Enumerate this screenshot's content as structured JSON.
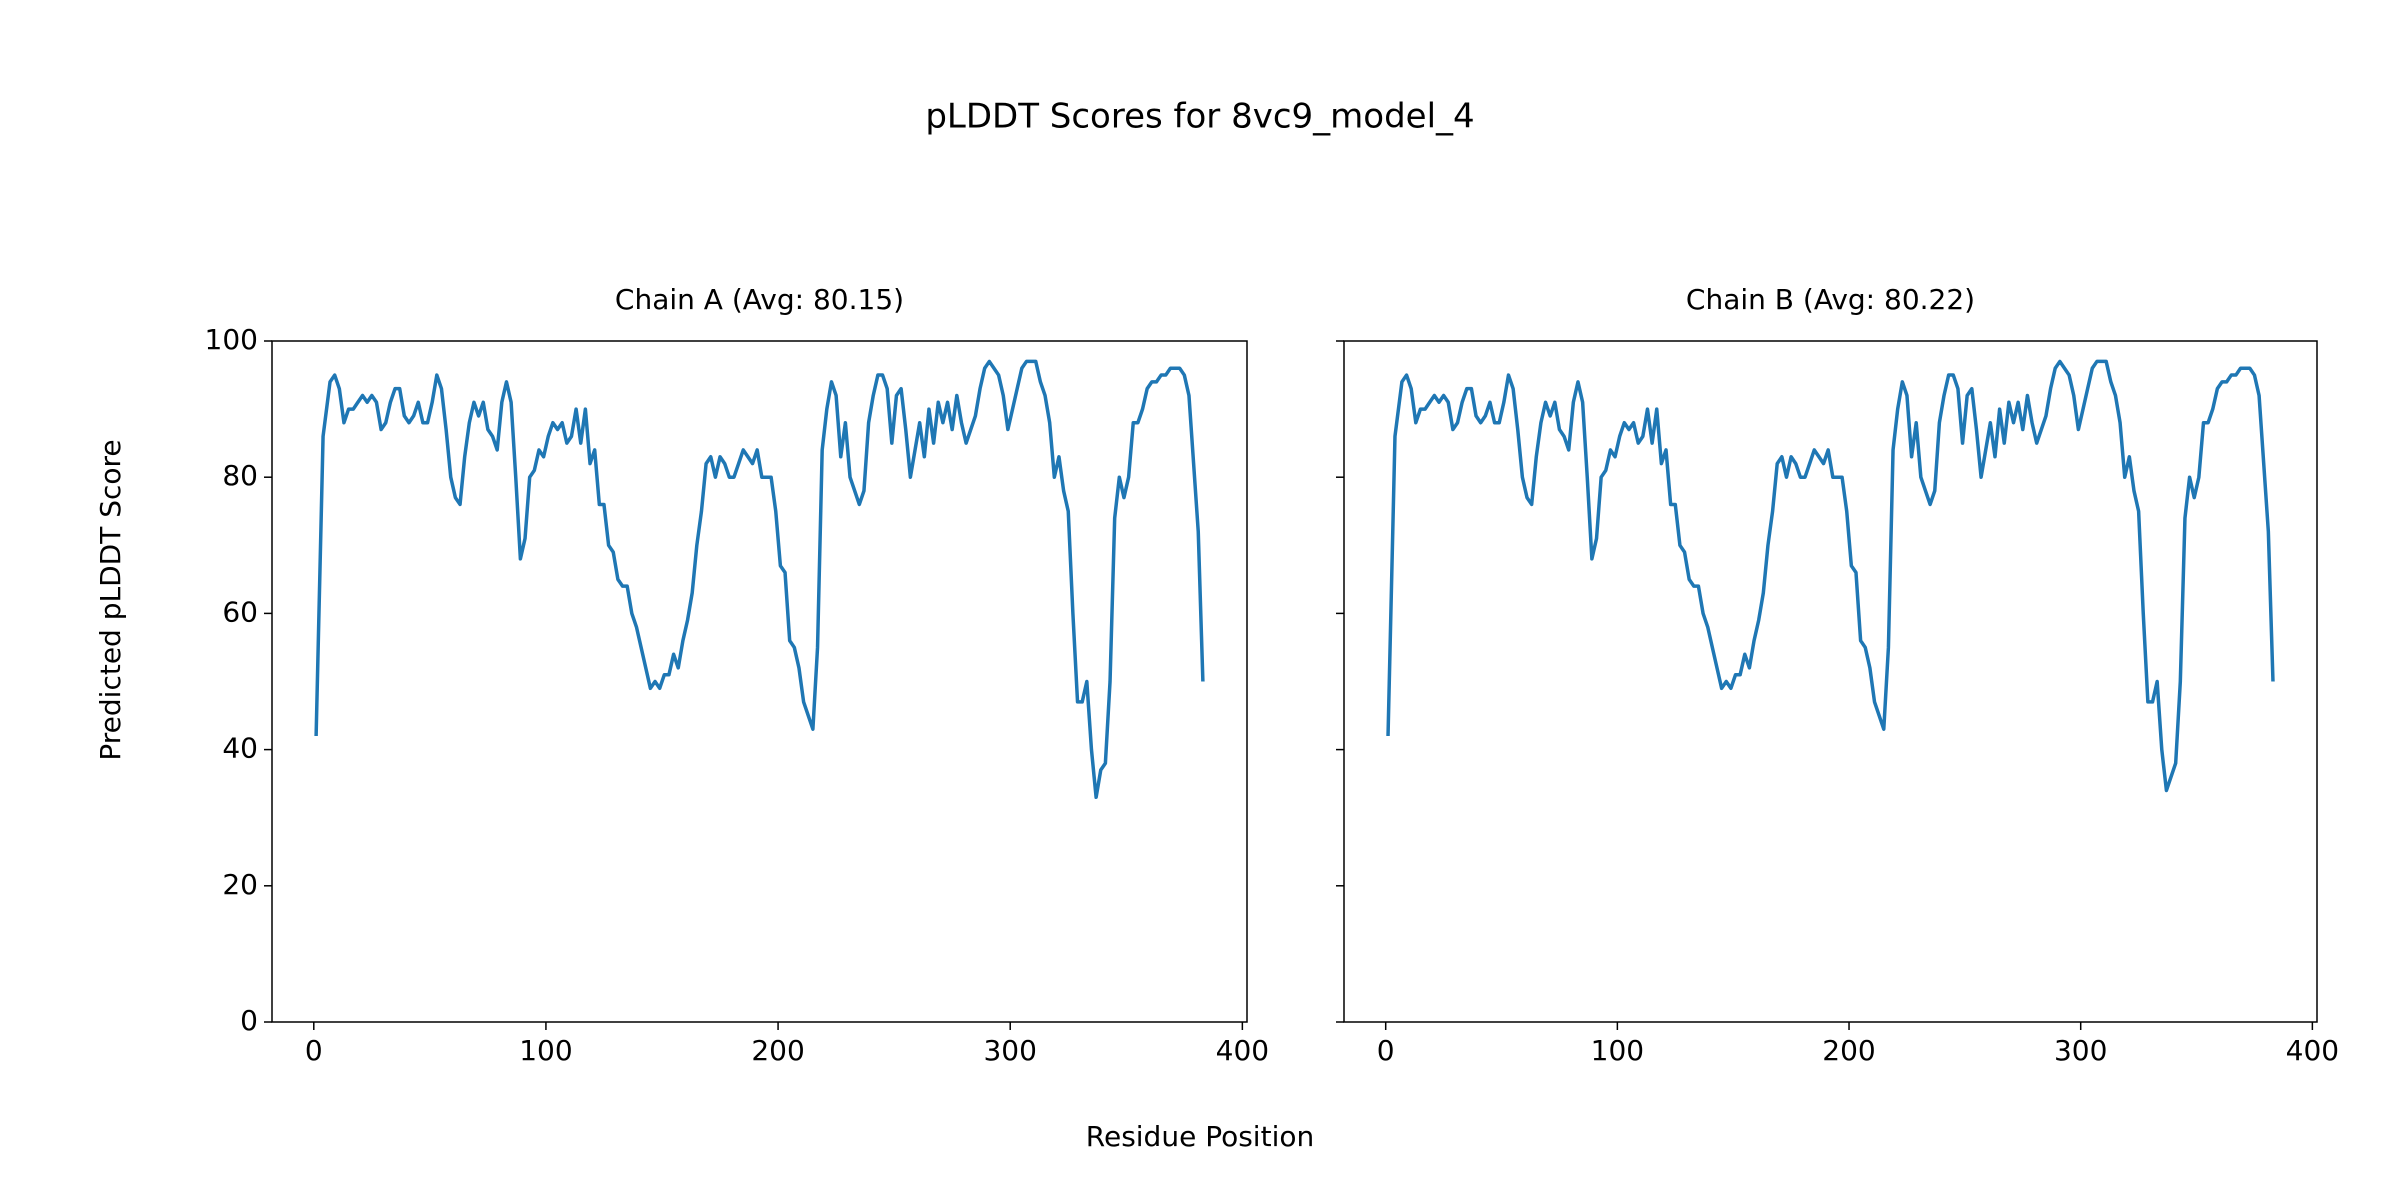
{
  "title": "pLDDT Scores for 8vc9_model_4",
  "x_label": "Residue Position",
  "y_label": "Predicted pLDDT Score",
  "chart_data": [
    {
      "type": "line",
      "title": "Chain A (Avg: 80.15)",
      "color": "#1f77b4",
      "x": [
        1,
        4,
        7,
        9,
        11,
        13,
        15,
        17,
        19,
        21,
        23,
        25,
        27,
        29,
        31,
        33,
        35,
        37,
        39,
        41,
        43,
        45,
        47,
        49,
        51,
        53,
        55,
        57,
        59,
        61,
        63,
        65,
        67,
        69,
        71,
        73,
        75,
        77,
        79,
        81,
        83,
        85,
        87,
        89,
        91,
        93,
        95,
        97,
        99,
        101,
        103,
        105,
        107,
        109,
        111,
        113,
        115,
        117,
        119,
        121,
        123,
        125,
        127,
        129,
        131,
        133,
        135,
        137,
        139,
        141,
        143,
        145,
        147,
        149,
        151,
        153,
        155,
        157,
        159,
        161,
        163,
        165,
        167,
        169,
        171,
        173,
        175,
        177,
        179,
        181,
        183,
        185,
        187,
        189,
        191,
        193,
        195,
        197,
        199,
        201,
        203,
        205,
        207,
        209,
        211,
        213,
        215,
        217,
        219,
        221,
        223,
        225,
        227,
        229,
        231,
        233,
        235,
        237,
        239,
        241,
        243,
        245,
        247,
        249,
        251,
        253,
        255,
        257,
        259,
        261,
        263,
        265,
        267,
        269,
        271,
        273,
        275,
        277,
        279,
        281,
        283,
        285,
        287,
        289,
        291,
        293,
        295,
        297,
        299,
        301,
        303,
        305,
        307,
        309,
        311,
        313,
        315,
        317,
        319,
        321,
        323,
        325,
        327,
        329,
        331,
        333,
        335,
        337,
        339,
        341,
        343,
        345,
        347,
        349,
        351,
        353,
        355,
        357,
        359,
        361,
        363,
        365,
        367,
        369,
        371,
        373,
        375,
        377,
        379,
        381,
        383
      ],
      "values": [
        42,
        86,
        94,
        95,
        93,
        88,
        90,
        90,
        91,
        92,
        91,
        92,
        91,
        87,
        88,
        91,
        93,
        93,
        89,
        88,
        89,
        91,
        88,
        88,
        91,
        95,
        93,
        87,
        80,
        77,
        76,
        83,
        88,
        91,
        89,
        91,
        87,
        86,
        84,
        91,
        94,
        91,
        80,
        68,
        71,
        80,
        81,
        84,
        83,
        86,
        88,
        87,
        88,
        85,
        86,
        90,
        85,
        90,
        82,
        84,
        76,
        76,
        70,
        69,
        65,
        64,
        64,
        60,
        58,
        55,
        52,
        49,
        50,
        49,
        51,
        51,
        54,
        52,
        56,
        59,
        63,
        70,
        75,
        82,
        83,
        80,
        83,
        82,
        80,
        80,
        82,
        84,
        83,
        82,
        84,
        80,
        80,
        80,
        75,
        67,
        66,
        56,
        55,
        52,
        47,
        45,
        43,
        55,
        84,
        90,
        94,
        92,
        83,
        88,
        80,
        78,
        76,
        78,
        88,
        92,
        95,
        95,
        93,
        85,
        92,
        93,
        87,
        80,
        84,
        88,
        83,
        90,
        85,
        91,
        88,
        91,
        87,
        92,
        88,
        85,
        87,
        89,
        93,
        96,
        97,
        96,
        95,
        92,
        87,
        90,
        93,
        96,
        97,
        97,
        97,
        94,
        92,
        88,
        80,
        83,
        78,
        75,
        60,
        47,
        47,
        50,
        40,
        33,
        37,
        38,
        50,
        74,
        80,
        77,
        80,
        88,
        88,
        90,
        93,
        94,
        94,
        95,
        95,
        96,
        96,
        96,
        95,
        92,
        82,
        72,
        50
      ],
      "xlim": [
        -18,
        402
      ],
      "ylim": [
        0,
        100
      ],
      "xticks": [
        0,
        100,
        200,
        300,
        400
      ],
      "yticks": [
        0,
        20,
        40,
        60,
        80,
        100
      ],
      "y_tick_labels": true
    },
    {
      "type": "line",
      "title": "Chain B (Avg: 80.22)",
      "color": "#1f77b4",
      "x": [
        1,
        4,
        7,
        9,
        11,
        13,
        15,
        17,
        19,
        21,
        23,
        25,
        27,
        29,
        31,
        33,
        35,
        37,
        39,
        41,
        43,
        45,
        47,
        49,
        51,
        53,
        55,
        57,
        59,
        61,
        63,
        65,
        67,
        69,
        71,
        73,
        75,
        77,
        79,
        81,
        83,
        85,
        87,
        89,
        91,
        93,
        95,
        97,
        99,
        101,
        103,
        105,
        107,
        109,
        111,
        113,
        115,
        117,
        119,
        121,
        123,
        125,
        127,
        129,
        131,
        133,
        135,
        137,
        139,
        141,
        143,
        145,
        147,
        149,
        151,
        153,
        155,
        157,
        159,
        161,
        163,
        165,
        167,
        169,
        171,
        173,
        175,
        177,
        179,
        181,
        183,
        185,
        187,
        189,
        191,
        193,
        195,
        197,
        199,
        201,
        203,
        205,
        207,
        209,
        211,
        213,
        215,
        217,
        219,
        221,
        223,
        225,
        227,
        229,
        231,
        233,
        235,
        237,
        239,
        241,
        243,
        245,
        247,
        249,
        251,
        253,
        255,
        257,
        259,
        261,
        263,
        265,
        267,
        269,
        271,
        273,
        275,
        277,
        279,
        281,
        283,
        285,
        287,
        289,
        291,
        293,
        295,
        297,
        299,
        301,
        303,
        305,
        307,
        309,
        311,
        313,
        315,
        317,
        319,
        321,
        323,
        325,
        327,
        329,
        331,
        333,
        335,
        337,
        339,
        341,
        343,
        345,
        347,
        349,
        351,
        353,
        355,
        357,
        359,
        361,
        363,
        365,
        367,
        369,
        371,
        373,
        375,
        377,
        379,
        381,
        383
      ],
      "values": [
        42,
        86,
        94,
        95,
        93,
        88,
        90,
        90,
        91,
        92,
        91,
        92,
        91,
        87,
        88,
        91,
        93,
        93,
        89,
        88,
        89,
        91,
        88,
        88,
        91,
        95,
        93,
        87,
        80,
        77,
        76,
        83,
        88,
        91,
        89,
        91,
        87,
        86,
        84,
        91,
        94,
        91,
        80,
        68,
        71,
        80,
        81,
        84,
        83,
        86,
        88,
        87,
        88,
        85,
        86,
        90,
        85,
        90,
        82,
        84,
        76,
        76,
        70,
        69,
        65,
        64,
        64,
        60,
        58,
        55,
        52,
        49,
        50,
        49,
        51,
        51,
        54,
        52,
        56,
        59,
        63,
        70,
        75,
        82,
        83,
        80,
        83,
        82,
        80,
        80,
        82,
        84,
        83,
        82,
        84,
        80,
        80,
        80,
        75,
        67,
        66,
        56,
        55,
        52,
        47,
        45,
        43,
        55,
        84,
        90,
        94,
        92,
        83,
        88,
        80,
        78,
        76,
        78,
        88,
        92,
        95,
        95,
        93,
        85,
        92,
        93,
        87,
        80,
        84,
        88,
        83,
        90,
        85,
        91,
        88,
        91,
        87,
        92,
        88,
        85,
        87,
        89,
        93,
        96,
        97,
        96,
        95,
        92,
        87,
        90,
        93,
        96,
        97,
        97,
        97,
        94,
        92,
        88,
        80,
        83,
        78,
        75,
        60,
        47,
        47,
        50,
        40,
        34,
        36,
        38,
        50,
        74,
        80,
        77,
        80,
        88,
        88,
        90,
        93,
        94,
        94,
        95,
        95,
        96,
        96,
        96,
        95,
        92,
        82,
        72,
        50
      ],
      "xlim": [
        -18,
        402
      ],
      "ylim": [
        0,
        100
      ],
      "xticks": [
        0,
        100,
        200,
        300,
        400
      ],
      "yticks": [
        0,
        20,
        40,
        60,
        80,
        100
      ],
      "y_tick_labels": false
    }
  ]
}
